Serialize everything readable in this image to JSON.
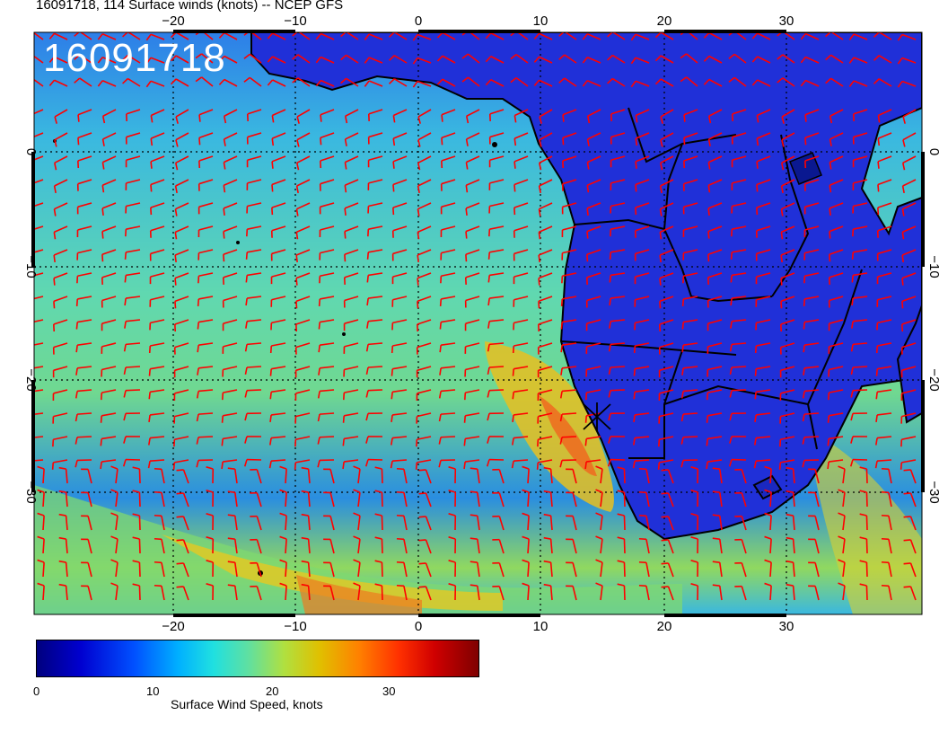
{
  "title": "16091718, 114 Surface winds (knots) -- NCEP GFS",
  "datestamp": "16091718",
  "axes": {
    "lon_ticks": [
      "−20",
      "−10",
      "0",
      "10",
      "20",
      "30"
    ],
    "lat_ticks": [
      "0",
      "−10",
      "−20",
      "−30"
    ]
  },
  "colorbar": {
    "label": "Surface Wind Speed, knots",
    "ticks": [
      "0",
      "10",
      "20",
      "30"
    ],
    "range": [
      0,
      37
    ]
  },
  "colors": {
    "barb": "#ff0000",
    "land_low": "#1a2ad8",
    "ocean_mid": "#38c8d0",
    "ocean_high": "#e8c020"
  }
}
